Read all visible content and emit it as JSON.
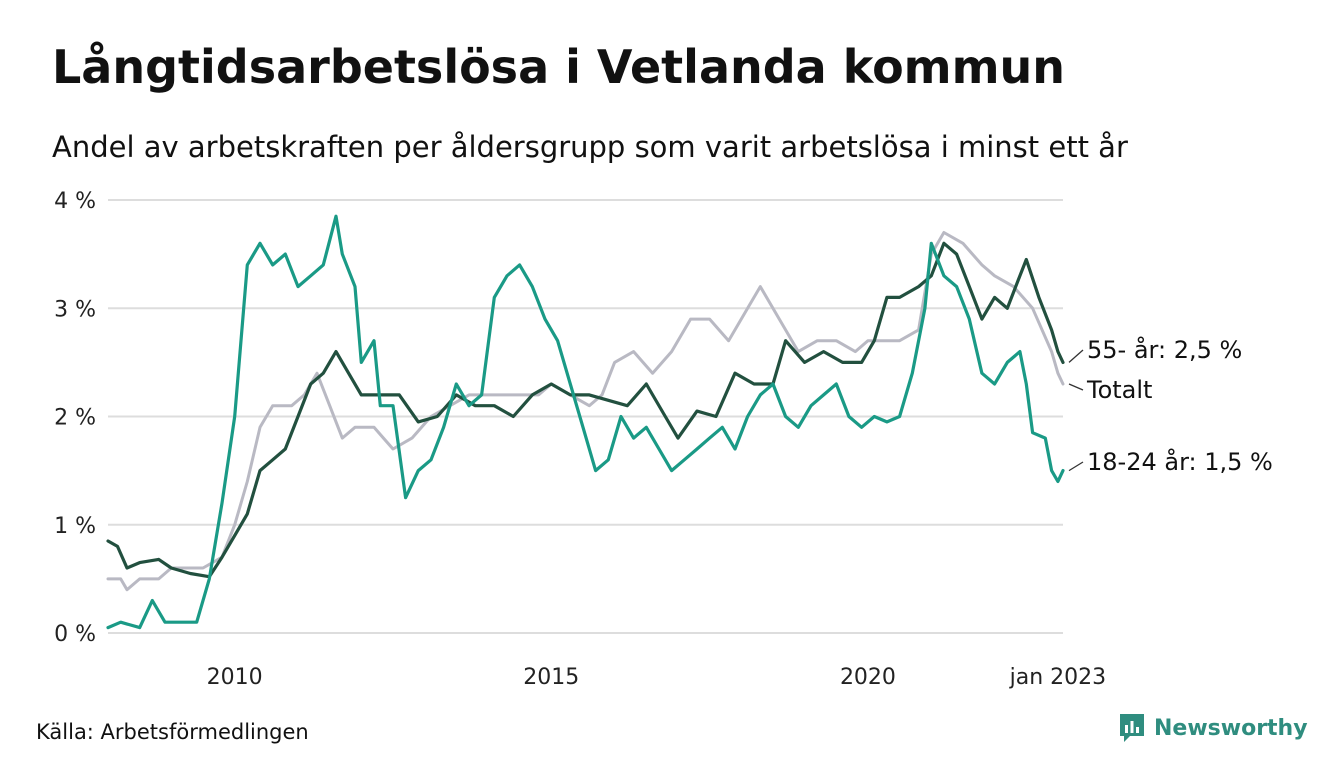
{
  "title": "Långtidsarbetslösa i Vetlanda kommun",
  "subtitle": "Andel av arbetskraften per åldersgrupp som varit arbetslösa i minst ett år",
  "source": "Källa: Arbetsförmedlingen",
  "brand": "Newsworthy",
  "colors": {
    "young": "#1a9a86",
    "old": "#22503f",
    "total": "#b9b9c3",
    "grid": "#dddddd",
    "brand": "#2f8d7f"
  },
  "chart_data": {
    "type": "line",
    "title": "Långtidsarbetslösa i Vetlanda kommun",
    "subtitle": "Andel av arbetskraften per åldersgrupp som varit arbetslösa i minst ett år",
    "xlabel": "",
    "ylabel": "",
    "xlim": [
      2008.0,
      2023.08
    ],
    "ylim": [
      0,
      4
    ],
    "grid": true,
    "y_ticks": [
      0,
      1,
      2,
      3,
      4
    ],
    "y_tick_labels": [
      "0 %",
      "1 %",
      "2 %",
      "3 %",
      "4 %"
    ],
    "x_ticks": [
      2010,
      2015,
      2020,
      2023.0
    ],
    "x_tick_labels": [
      "2010",
      "2015",
      "2020",
      "jan 2023"
    ],
    "series": [
      {
        "key": "total",
        "name": "Totalt",
        "end_label": "Totalt",
        "points": [
          [
            2008.0,
            0.5
          ],
          [
            2008.2,
            0.5
          ],
          [
            2008.3,
            0.4
          ],
          [
            2008.5,
            0.5
          ],
          [
            2008.8,
            0.5
          ],
          [
            2009.0,
            0.6
          ],
          [
            2009.5,
            0.6
          ],
          [
            2009.8,
            0.7
          ],
          [
            2010.0,
            1.0
          ],
          [
            2010.2,
            1.4
          ],
          [
            2010.4,
            1.9
          ],
          [
            2010.6,
            2.1
          ],
          [
            2010.9,
            2.1
          ],
          [
            2011.1,
            2.2
          ],
          [
            2011.3,
            2.4
          ],
          [
            2011.5,
            2.1
          ],
          [
            2011.7,
            1.8
          ],
          [
            2011.9,
            1.9
          ],
          [
            2012.2,
            1.9
          ],
          [
            2012.5,
            1.7
          ],
          [
            2012.8,
            1.8
          ],
          [
            2013.1,
            2.0
          ],
          [
            2013.4,
            2.1
          ],
          [
            2013.7,
            2.2
          ],
          [
            2014.0,
            2.2
          ],
          [
            2014.4,
            2.2
          ],
          [
            2014.8,
            2.2
          ],
          [
            2015.0,
            2.3
          ],
          [
            2015.3,
            2.2
          ],
          [
            2015.6,
            2.1
          ],
          [
            2015.8,
            2.2
          ],
          [
            2016.0,
            2.5
          ],
          [
            2016.3,
            2.6
          ],
          [
            2016.6,
            2.4
          ],
          [
            2016.9,
            2.6
          ],
          [
            2017.2,
            2.9
          ],
          [
            2017.5,
            2.9
          ],
          [
            2017.8,
            2.7
          ],
          [
            2018.1,
            3.0
          ],
          [
            2018.3,
            3.2
          ],
          [
            2018.6,
            2.9
          ],
          [
            2018.9,
            2.6
          ],
          [
            2019.2,
            2.7
          ],
          [
            2019.5,
            2.7
          ],
          [
            2019.8,
            2.6
          ],
          [
            2020.0,
            2.7
          ],
          [
            2020.2,
            2.7
          ],
          [
            2020.5,
            2.7
          ],
          [
            2020.8,
            2.8
          ],
          [
            2021.0,
            3.5
          ],
          [
            2021.2,
            3.7
          ],
          [
            2021.5,
            3.6
          ],
          [
            2021.8,
            3.4
          ],
          [
            2022.0,
            3.3
          ],
          [
            2022.3,
            3.2
          ],
          [
            2022.6,
            3.0
          ],
          [
            2022.9,
            2.6
          ],
          [
            2023.0,
            2.4
          ],
          [
            2023.08,
            2.3
          ]
        ]
      },
      {
        "key": "old",
        "name": "55- år",
        "end_label": "55- år: 2,5 %",
        "points": [
          [
            2008.0,
            0.85
          ],
          [
            2008.15,
            0.8
          ],
          [
            2008.3,
            0.6
          ],
          [
            2008.5,
            0.65
          ],
          [
            2008.8,
            0.68
          ],
          [
            2009.0,
            0.6
          ],
          [
            2009.3,
            0.55
          ],
          [
            2009.6,
            0.52
          ],
          [
            2009.8,
            0.7
          ],
          [
            2010.0,
            0.9
          ],
          [
            2010.2,
            1.1
          ],
          [
            2010.4,
            1.5
          ],
          [
            2010.6,
            1.6
          ],
          [
            2010.8,
            1.7
          ],
          [
            2011.0,
            2.0
          ],
          [
            2011.2,
            2.3
          ],
          [
            2011.4,
            2.4
          ],
          [
            2011.6,
            2.6
          ],
          [
            2011.8,
            2.4
          ],
          [
            2012.0,
            2.2
          ],
          [
            2012.3,
            2.2
          ],
          [
            2012.6,
            2.2
          ],
          [
            2012.9,
            1.95
          ],
          [
            2013.2,
            2.0
          ],
          [
            2013.5,
            2.2
          ],
          [
            2013.8,
            2.1
          ],
          [
            2014.1,
            2.1
          ],
          [
            2014.4,
            2.0
          ],
          [
            2014.7,
            2.2
          ],
          [
            2015.0,
            2.3
          ],
          [
            2015.3,
            2.2
          ],
          [
            2015.6,
            2.2
          ],
          [
            2015.9,
            2.15
          ],
          [
            2016.2,
            2.1
          ],
          [
            2016.5,
            2.3
          ],
          [
            2016.8,
            2.0
          ],
          [
            2017.0,
            1.8
          ],
          [
            2017.3,
            2.05
          ],
          [
            2017.6,
            2.0
          ],
          [
            2017.9,
            2.4
          ],
          [
            2018.2,
            2.3
          ],
          [
            2018.5,
            2.3
          ],
          [
            2018.7,
            2.7
          ],
          [
            2019.0,
            2.5
          ],
          [
            2019.3,
            2.6
          ],
          [
            2019.6,
            2.5
          ],
          [
            2019.9,
            2.5
          ],
          [
            2020.1,
            2.7
          ],
          [
            2020.3,
            3.1
          ],
          [
            2020.5,
            3.1
          ],
          [
            2020.8,
            3.2
          ],
          [
            2021.0,
            3.3
          ],
          [
            2021.2,
            3.6
          ],
          [
            2021.4,
            3.5
          ],
          [
            2021.6,
            3.2
          ],
          [
            2021.8,
            2.9
          ],
          [
            2022.0,
            3.1
          ],
          [
            2022.2,
            3.0
          ],
          [
            2022.4,
            3.3
          ],
          [
            2022.5,
            3.45
          ],
          [
            2022.7,
            3.1
          ],
          [
            2022.9,
            2.8
          ],
          [
            2023.0,
            2.6
          ],
          [
            2023.08,
            2.5
          ]
        ]
      },
      {
        "key": "young",
        "name": "18-24 år",
        "end_label": "18-24 år: 1,5 %",
        "points": [
          [
            2008.0,
            0.05
          ],
          [
            2008.2,
            0.1
          ],
          [
            2008.5,
            0.05
          ],
          [
            2008.7,
            0.3
          ],
          [
            2008.9,
            0.1
          ],
          [
            2009.1,
            0.1
          ],
          [
            2009.4,
            0.1
          ],
          [
            2009.6,
            0.5
          ],
          [
            2009.8,
            1.2
          ],
          [
            2010.0,
            2.0
          ],
          [
            2010.2,
            3.4
          ],
          [
            2010.4,
            3.6
          ],
          [
            2010.6,
            3.4
          ],
          [
            2010.8,
            3.5
          ],
          [
            2011.0,
            3.2
          ],
          [
            2011.2,
            3.3
          ],
          [
            2011.4,
            3.4
          ],
          [
            2011.6,
            3.85
          ],
          [
            2011.7,
            3.5
          ],
          [
            2011.9,
            3.2
          ],
          [
            2012.0,
            2.5
          ],
          [
            2012.2,
            2.7
          ],
          [
            2012.3,
            2.1
          ],
          [
            2012.5,
            2.1
          ],
          [
            2012.7,
            1.25
          ],
          [
            2012.9,
            1.5
          ],
          [
            2013.1,
            1.6
          ],
          [
            2013.3,
            1.9
          ],
          [
            2013.5,
            2.3
          ],
          [
            2013.7,
            2.1
          ],
          [
            2013.9,
            2.2
          ],
          [
            2014.1,
            3.1
          ],
          [
            2014.3,
            3.3
          ],
          [
            2014.5,
            3.4
          ],
          [
            2014.7,
            3.2
          ],
          [
            2014.9,
            2.9
          ],
          [
            2015.1,
            2.7
          ],
          [
            2015.3,
            2.3
          ],
          [
            2015.5,
            1.9
          ],
          [
            2015.7,
            1.5
          ],
          [
            2015.9,
            1.6
          ],
          [
            2016.1,
            2.0
          ],
          [
            2016.3,
            1.8
          ],
          [
            2016.5,
            1.9
          ],
          [
            2016.7,
            1.7
          ],
          [
            2016.9,
            1.5
          ],
          [
            2017.1,
            1.6
          ],
          [
            2017.3,
            1.7
          ],
          [
            2017.5,
            1.8
          ],
          [
            2017.7,
            1.9
          ],
          [
            2017.9,
            1.7
          ],
          [
            2018.1,
            2.0
          ],
          [
            2018.3,
            2.2
          ],
          [
            2018.5,
            2.3
          ],
          [
            2018.7,
            2.0
          ],
          [
            2018.9,
            1.9
          ],
          [
            2019.1,
            2.1
          ],
          [
            2019.3,
            2.2
          ],
          [
            2019.5,
            2.3
          ],
          [
            2019.7,
            2.0
          ],
          [
            2019.9,
            1.9
          ],
          [
            2020.1,
            2.0
          ],
          [
            2020.3,
            1.95
          ],
          [
            2020.5,
            2.0
          ],
          [
            2020.7,
            2.4
          ],
          [
            2020.9,
            3.0
          ],
          [
            2021.0,
            3.6
          ],
          [
            2021.2,
            3.3
          ],
          [
            2021.4,
            3.2
          ],
          [
            2021.6,
            2.9
          ],
          [
            2021.8,
            2.4
          ],
          [
            2022.0,
            2.3
          ],
          [
            2022.2,
            2.5
          ],
          [
            2022.4,
            2.6
          ],
          [
            2022.5,
            2.3
          ],
          [
            2022.6,
            1.85
          ],
          [
            2022.8,
            1.8
          ],
          [
            2022.9,
            1.5
          ],
          [
            2023.0,
            1.4
          ],
          [
            2023.08,
            1.5
          ]
        ]
      }
    ]
  }
}
